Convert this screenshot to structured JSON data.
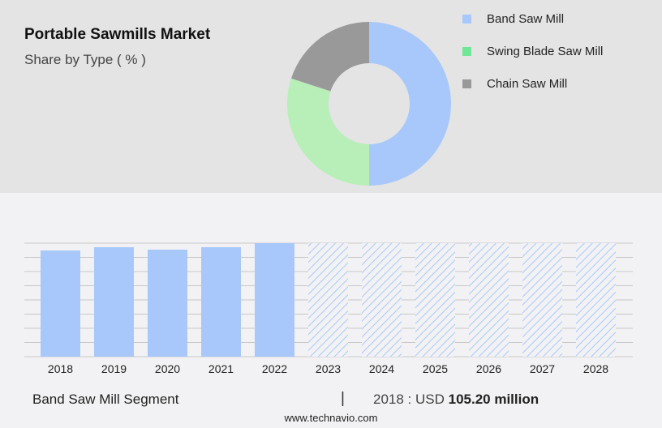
{
  "header": {
    "title": "Portable Sawmills Market",
    "subtitle": "Share by Type ( % )"
  },
  "chart_data": [
    {
      "type": "pie",
      "style": "donut",
      "categories": [
        "Band Saw Mill",
        "Swing Blade Saw Mill",
        "Chain Saw Mill"
      ],
      "values": [
        50,
        30,
        20
      ],
      "colors": [
        "#a8c8fc",
        "#b8eeb8",
        "#999999"
      ],
      "legend_colors": [
        "#a8c8fc",
        "#6ee896",
        "#999999"
      ],
      "legend": "right"
    },
    {
      "type": "bar",
      "categories": [
        "2018",
        "2019",
        "2020",
        "2021",
        "2022",
        "2023",
        "2024",
        "2025",
        "2026",
        "2027",
        "2028"
      ],
      "values": [
        105.2,
        108.4,
        106.0,
        108.4,
        112.4,
        null,
        null,
        null,
        null,
        null,
        null
      ],
      "forecast": [
        false,
        false,
        false,
        false,
        false,
        true,
        true,
        true,
        true,
        true,
        true
      ],
      "color": "#a8c8fc",
      "grid": true,
      "ylim": [
        0,
        112.4
      ]
    }
  ],
  "footer": {
    "segment": "Band Saw Mill Segment",
    "separator": "|",
    "year_label": "2018 : USD ",
    "value": "105.20 million",
    "site": "www.technavio.com"
  }
}
